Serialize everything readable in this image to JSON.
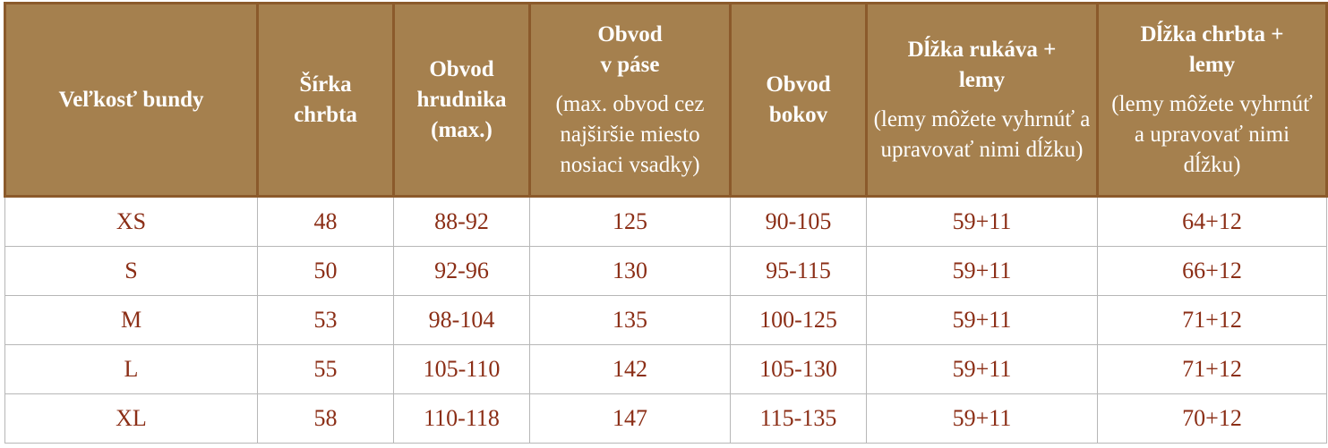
{
  "table": {
    "headers": {
      "size": "Veľkosť bundy",
      "back_width": [
        "Šírka",
        "chrbta"
      ],
      "chest": [
        "Obvod",
        "hrudnika",
        "(max.)"
      ],
      "waist": [
        "Obvod",
        "v páse"
      ],
      "waist_note": "(max. obvod cez najširšie miesto nosiaci vsadky)",
      "hips": [
        "Obvod",
        "bokov"
      ],
      "sleeve_length": [
        "Dĺžka rukáva +",
        "lemy"
      ],
      "sleeve_note": "(lemy môžete vyhrnúť a upravovať nimi dĺžku)",
      "back_length": [
        "Dĺžka chrbta +",
        "lemy"
      ],
      "back_note": "(lemy môžete vyhrnúť a upravovať nimi dĺžku)"
    },
    "rows": [
      {
        "size": "XS",
        "back_width": "48",
        "chest": "88-92",
        "waist": "125",
        "hips": "90-105",
        "sleeve_length": "59+11",
        "back_length": "64+12"
      },
      {
        "size": "S",
        "back_width": "50",
        "chest": "92-96",
        "waist": "130",
        "hips": "95-115",
        "sleeve_length": "59+11",
        "back_length": "66+12"
      },
      {
        "size": "M",
        "back_width": "53",
        "chest": "98-104",
        "waist": "135",
        "hips": "100-125",
        "sleeve_length": "59+11",
        "back_length": "71+12"
      },
      {
        "size": "L",
        "back_width": "55",
        "chest": "105-110",
        "waist": "142",
        "hips": "105-130",
        "sleeve_length": "59+11",
        "back_length": "71+12"
      },
      {
        "size": "XL",
        "back_width": "58",
        "chest": "110-118",
        "waist": "147",
        "hips": "115-135",
        "sleeve_length": "59+11",
        "back_length": "70+12"
      }
    ]
  },
  "colors": {
    "header_bg": "#a5804e",
    "header_border": "#8b5a2b",
    "header_text": "#ffffff",
    "cell_text": "#8b2e16",
    "cell_border": "#b7b7b7"
  }
}
